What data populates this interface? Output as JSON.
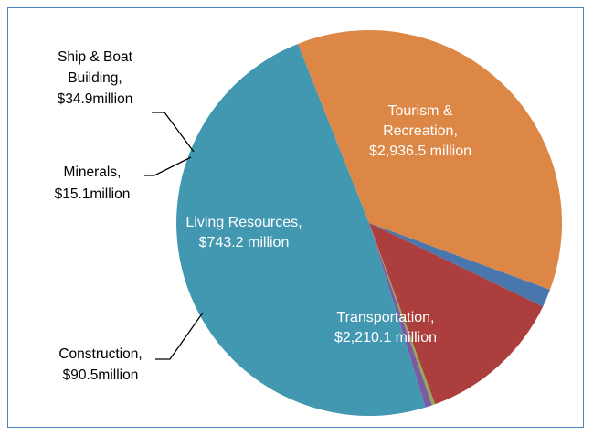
{
  "chart_data": {
    "type": "pie",
    "title": "",
    "legend": "none",
    "slices": [
      {
        "name": "Tourism & Recreation",
        "label_lines": [
          "Tourism &",
          "Recreation,",
          "$2,936.5 million"
        ],
        "value": 2936.5,
        "color": "#4298b1"
      },
      {
        "name": "Transportation",
        "label_lines": [
          "Transportation,",
          "$2,210.1 million"
        ],
        "value": 2210.1,
        "color": "#dd8746"
      },
      {
        "name": "Construction",
        "label_lines": [
          "Construction,",
          "$90.5million"
        ],
        "value": 90.5,
        "color": "#4a76ae"
      },
      {
        "name": "Living Resources",
        "label_lines": [
          "Living Resources,",
          "$743.2 million"
        ],
        "value": 743.2,
        "color": "#ad3e3e"
      },
      {
        "name": "Minerals",
        "label_lines": [
          "Minerals,",
          "$15.1million"
        ],
        "value": 15.1,
        "color": "#93aa4f"
      },
      {
        "name": "Ship & Boat Building",
        "label_lines": [
          "Ship & Boat",
          "Building,",
          "$34.9million"
        ],
        "value": 34.9,
        "color": "#7c5ba5"
      }
    ]
  }
}
